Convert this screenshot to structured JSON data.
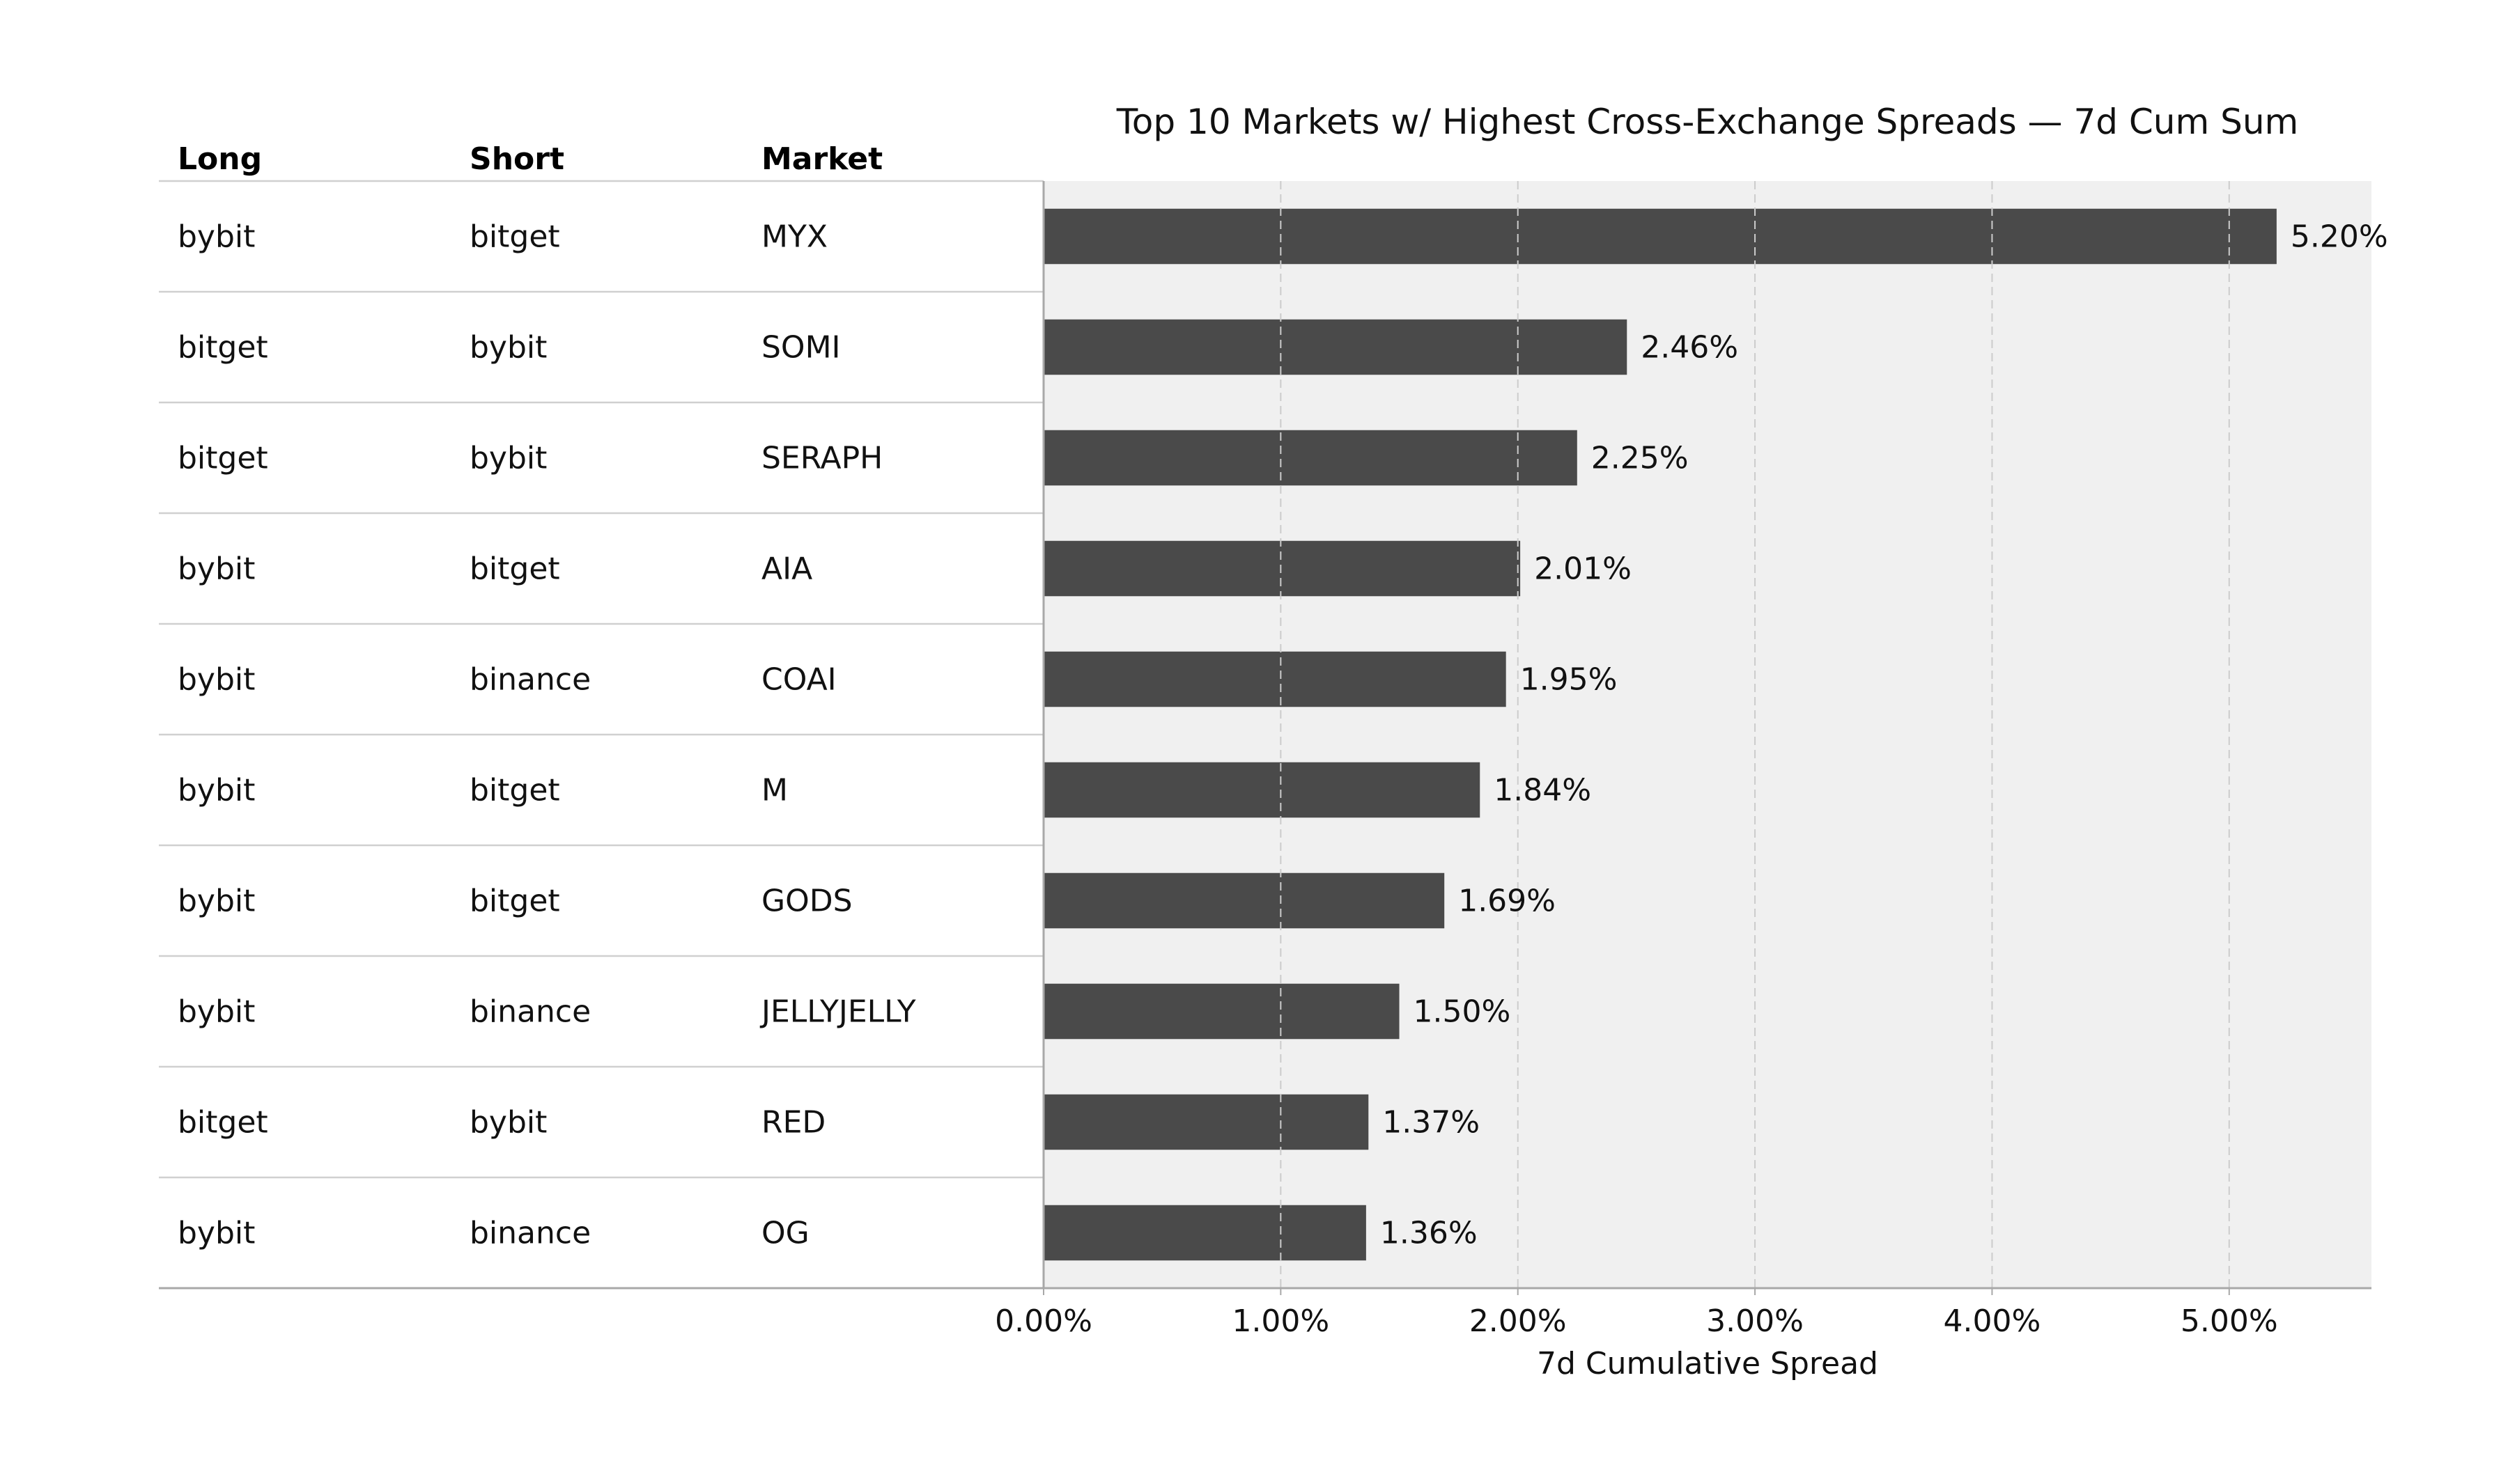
{
  "chart_data": {
    "type": "bar",
    "orientation": "horizontal",
    "title": "Top 10 Markets w/ Highest Cross-Exchange Spreads — 7d Cum Sum",
    "xlabel": "7d Cumulative Spread",
    "xlim": [
      0,
      5.6
    ],
    "x_ticks": [
      0,
      1,
      2,
      3,
      4,
      5
    ],
    "x_tick_labels": [
      "0.00%",
      "1.00%",
      "2.00%",
      "3.00%",
      "4.00%",
      "5.00%"
    ],
    "grid": "vertical dashed",
    "table_headers": [
      "Long",
      "Short",
      "Market"
    ],
    "rows": [
      {
        "long": "bybit",
        "short": "bitget",
        "market": "MYX",
        "value": 5.2,
        "label": "5.20%"
      },
      {
        "long": "bitget",
        "short": "bybit",
        "market": "SOMI",
        "value": 2.46,
        "label": "2.46%"
      },
      {
        "long": "bitget",
        "short": "bybit",
        "market": "SERAPH",
        "value": 2.25,
        "label": "2.25%"
      },
      {
        "long": "bybit",
        "short": "bitget",
        "market": "AIA",
        "value": 2.01,
        "label": "2.01%"
      },
      {
        "long": "bybit",
        "short": "binance",
        "market": "COAI",
        "value": 1.95,
        "label": "1.95%"
      },
      {
        "long": "bybit",
        "short": "bitget",
        "market": "M",
        "value": 1.84,
        "label": "1.84%"
      },
      {
        "long": "bybit",
        "short": "bitget",
        "market": "GODS",
        "value": 1.69,
        "label": "1.69%"
      },
      {
        "long": "bybit",
        "short": "binance",
        "market": "JELLYJELLY",
        "value": 1.5,
        "label": "1.50%"
      },
      {
        "long": "bitget",
        "short": "bybit",
        "market": "RED",
        "value": 1.37,
        "label": "1.37%"
      },
      {
        "long": "bybit",
        "short": "binance",
        "market": "OG",
        "value": 1.36,
        "label": "1.36%"
      }
    ],
    "colors": {
      "bar": "#4a4a4a",
      "plot_background": "#f0f0f0",
      "grid": "#cccccc",
      "row_divider": "#d0d0d0"
    }
  }
}
